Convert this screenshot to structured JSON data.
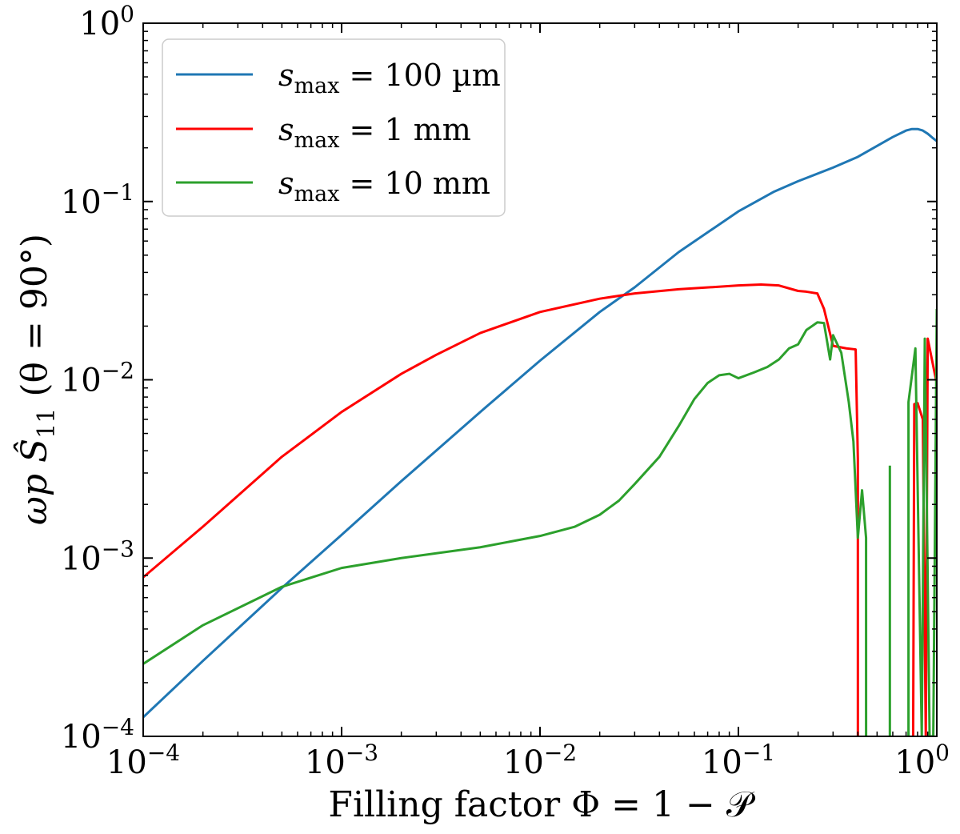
{
  "chart_data": {
    "type": "line",
    "x_scale": "log",
    "y_scale": "log",
    "xlim": [
      0.0001,
      1
    ],
    "ylim": [
      0.0001,
      1
    ],
    "xlabel": "Filling factor Φ = 1 − 𝒫",
    "ylabel": "ωp Ŝ11 (θ = 90°)",
    "ylabel_parts": {
      "main": "ωp Ŝ",
      "sub": "11",
      "rest": " (θ = 90°)"
    },
    "x_ticks": [
      {
        "value": 0.0001,
        "base": "10",
        "exp": "−4"
      },
      {
        "value": 0.001,
        "base": "10",
        "exp": "−3"
      },
      {
        "value": 0.01,
        "base": "10",
        "exp": "−2"
      },
      {
        "value": 0.1,
        "base": "10",
        "exp": "−1"
      },
      {
        "value": 1,
        "base": "10",
        "exp": "0"
      }
    ],
    "y_ticks": [
      {
        "value": 0.0001,
        "base": "10",
        "exp": "−4"
      },
      {
        "value": 0.001,
        "base": "10",
        "exp": "−3"
      },
      {
        "value": 0.01,
        "base": "10",
        "exp": "−2"
      },
      {
        "value": 0.1,
        "base": "10",
        "exp": "−1"
      },
      {
        "value": 1,
        "base": "10",
        "exp": "0"
      }
    ],
    "legend_position": "top-left",
    "series": [
      {
        "name": "s_max = 100 µm",
        "label_var": "s",
        "label_sub": "max",
        "label_value": " = 100 µm",
        "color": "#1f77b4",
        "points": [
          [
            0.0001,
            0.000128
          ],
          [
            0.0002,
            0.000265
          ],
          [
            0.0005,
            0.00068
          ],
          [
            0.001,
            0.00135
          ],
          [
            0.002,
            0.0027
          ],
          [
            0.005,
            0.0066
          ],
          [
            0.01,
            0.0128
          ],
          [
            0.02,
            0.024
          ],
          [
            0.03,
            0.033
          ],
          [
            0.05,
            0.052
          ],
          [
            0.1,
            0.088
          ],
          [
            0.15,
            0.113
          ],
          [
            0.2,
            0.13
          ],
          [
            0.3,
            0.155
          ],
          [
            0.4,
            0.178
          ],
          [
            0.5,
            0.205
          ],
          [
            0.6,
            0.23
          ],
          [
            0.7,
            0.25
          ],
          [
            0.75,
            0.255
          ],
          [
            0.8,
            0.255
          ],
          [
            0.85,
            0.25
          ],
          [
            0.9,
            0.24
          ],
          [
            0.95,
            0.228
          ],
          [
            1.0,
            0.218
          ]
        ]
      },
      {
        "name": "s_max = 1 mm",
        "label_var": "s",
        "label_sub": "max",
        "label_value": " = 1 mm",
        "color": "#ff0000",
        "segments": [
          [
            [
              0.0001,
              0.00078
            ],
            [
              0.0002,
              0.0015
            ],
            [
              0.0005,
              0.0037
            ],
            [
              0.001,
              0.0066
            ],
            [
              0.002,
              0.0108
            ],
            [
              0.003,
              0.0138
            ],
            [
              0.005,
              0.0183
            ],
            [
              0.01,
              0.024
            ],
            [
              0.02,
              0.0285
            ],
            [
              0.03,
              0.0305
            ],
            [
              0.05,
              0.0322
            ],
            [
              0.1,
              0.0338
            ],
            [
              0.13,
              0.0342
            ],
            [
              0.16,
              0.0338
            ],
            [
              0.2,
              0.0315
            ],
            [
              0.22,
              0.0312
            ],
            [
              0.25,
              0.0305
            ],
            [
              0.27,
              0.025
            ],
            [
              0.3,
              0.0155
            ],
            [
              0.35,
              0.015
            ],
            [
              0.39,
              0.0148
            ],
            [
              0.4,
              0.0036
            ],
            [
              0.4001,
              0.0001
            ]
          ],
          [
            [
              0.76,
              0.0001
            ],
            [
              0.77,
              0.0073
            ],
            [
              0.8,
              0.0074
            ],
            [
              0.85,
              0.006
            ],
            [
              0.88,
              0.0001
            ],
            [
              0.9,
              0.017
            ],
            [
              1.0,
              0.0095
            ]
          ]
        ]
      },
      {
        "name": "s_max = 10 mm",
        "label_var": "s",
        "label_sub": "max",
        "label_value": " = 10 mm",
        "color": "#2ca02c",
        "segments": [
          [
            [
              0.0001,
              0.000255
            ],
            [
              0.0002,
              0.00042
            ],
            [
              0.0005,
              0.00069
            ],
            [
              0.001,
              0.00088
            ],
            [
              0.002,
              0.001
            ],
            [
              0.005,
              0.00115
            ],
            [
              0.01,
              0.00133
            ],
            [
              0.015,
              0.0015
            ],
            [
              0.02,
              0.00175
            ],
            [
              0.025,
              0.0021
            ],
            [
              0.03,
              0.0026
            ],
            [
              0.04,
              0.0037
            ],
            [
              0.05,
              0.0055
            ],
            [
              0.06,
              0.0078
            ],
            [
              0.07,
              0.0096
            ],
            [
              0.08,
              0.0106
            ],
            [
              0.09,
              0.0108
            ],
            [
              0.1,
              0.0102
            ],
            [
              0.12,
              0.011
            ],
            [
              0.14,
              0.0118
            ],
            [
              0.16,
              0.013
            ],
            [
              0.18,
              0.015
            ],
            [
              0.2,
              0.0158
            ],
            [
              0.22,
              0.019
            ],
            [
              0.25,
              0.021
            ],
            [
              0.27,
              0.0208
            ],
            [
              0.29,
              0.013
            ],
            [
              0.3,
              0.0178
            ],
            [
              0.33,
              0.0142
            ],
            [
              0.36,
              0.0075
            ],
            [
              0.38,
              0.0045
            ],
            [
              0.4,
              0.0013
            ],
            [
              0.42,
              0.0024
            ],
            [
              0.44,
              0.0013
            ],
            [
              0.4401,
              0.0001
            ]
          ],
          [
            [
              0.58,
              0.0001
            ],
            [
              0.58,
              0.0033
            ]
          ],
          [
            [
              0.72,
              0.0001
            ],
            [
              0.72,
              0.0075
            ],
            [
              0.78,
              0.015
            ],
            [
              0.84,
              0.0001
            ],
            [
              0.87,
              0.017
            ],
            [
              0.92,
              0.0001
            ],
            [
              0.96,
              0.0001
            ],
            [
              1.0,
              0.025
            ]
          ]
        ]
      }
    ]
  }
}
